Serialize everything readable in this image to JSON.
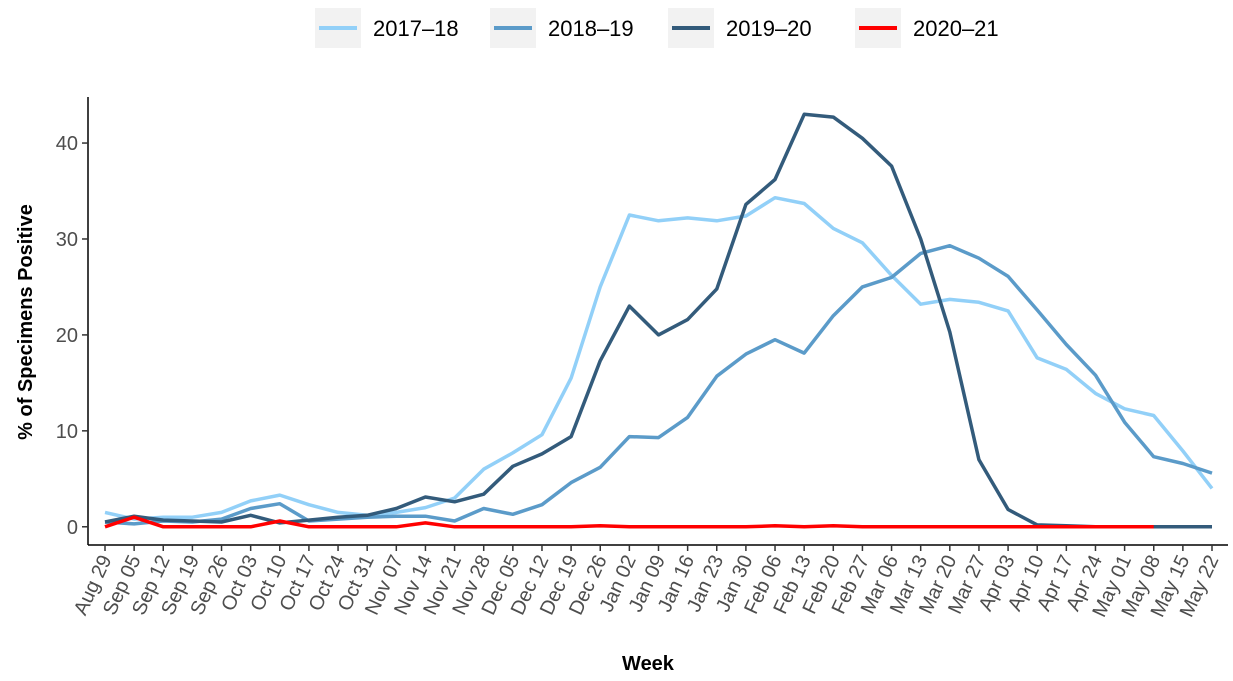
{
  "chart_data": {
    "type": "line",
    "x_label": "Week",
    "y_label": "% of Specimens Positive",
    "categories": [
      "Aug 29",
      "Sep 05",
      "Sep 12",
      "Sep 19",
      "Sep 26",
      "Oct 03",
      "Oct 10",
      "Oct 17",
      "Oct 24",
      "Oct 31",
      "Nov 07",
      "Nov 14",
      "Nov 21",
      "Nov 28",
      "Dec 05",
      "Dec 12",
      "Dec 19",
      "Dec 26",
      "Jan 02",
      "Jan 09",
      "Jan 16",
      "Jan 23",
      "Jan 30",
      "Feb 06",
      "Feb 13",
      "Feb 20",
      "Feb 27",
      "Mar 06",
      "Mar 13",
      "Mar 20",
      "Mar 27",
      "Apr 03",
      "Apr 10",
      "Apr 17",
      "Apr 24",
      "May 01",
      "May 08",
      "May 15",
      "May 22"
    ],
    "series": [
      {
        "name": "2017–18",
        "color": "#92d0f8",
        "values": [
          1.5,
          0.8,
          1.0,
          1.0,
          1.5,
          2.7,
          3.3,
          2.3,
          1.5,
          1.2,
          1.5,
          2.0,
          3.0,
          6.0,
          7.7,
          9.6,
          15.5,
          25.0,
          32.5,
          31.9,
          32.2,
          31.9,
          32.4,
          34.3,
          33.7,
          31.1,
          29.6,
          26.2,
          23.2,
          23.7,
          23.4,
          22.5,
          17.6,
          16.4,
          13.9,
          12.3,
          11.6,
          7.9,
          4.0
        ]
      },
      {
        "name": "2018–19",
        "color": "#5b9bc9",
        "values": [
          0.5,
          0.3,
          0.6,
          0.5,
          0.8,
          1.9,
          2.4,
          0.6,
          0.8,
          1.0,
          1.1,
          1.1,
          0.6,
          1.9,
          1.3,
          2.3,
          4.6,
          6.2,
          9.4,
          9.3,
          11.4,
          15.7,
          18.0,
          19.5,
          18.1,
          22.0,
          25.0,
          26.0,
          28.5,
          29.3,
          28.0,
          26.1,
          22.6,
          19.0,
          15.8,
          10.9,
          7.3,
          6.6,
          5.6
        ]
      },
      {
        "name": "2019–20",
        "color": "#335b7b",
        "values": [
          0.5,
          1.1,
          0.7,
          0.6,
          0.5,
          1.2,
          0.4,
          0.7,
          1.0,
          1.2,
          1.9,
          3.1,
          2.6,
          3.4,
          6.3,
          7.6,
          9.4,
          17.3,
          23.0,
          20.0,
          21.6,
          24.8,
          33.6,
          36.2,
          43.0,
          42.7,
          40.5,
          37.6,
          30.0,
          20.3,
          7.0,
          1.8,
          0.2,
          0.1,
          0,
          0,
          0,
          0,
          0
        ]
      },
      {
        "name": "2020–21",
        "color": "#ff0000",
        "values": [
          0,
          1.0,
          0,
          0,
          0,
          0,
          0.6,
          0,
          0,
          0,
          0,
          0.4,
          0,
          0,
          0,
          0,
          0,
          0.1,
          0,
          0,
          0,
          0,
          0,
          0.1,
          0,
          0.1,
          0,
          0,
          0,
          0,
          0,
          0,
          0,
          0,
          0,
          0,
          0,
          null,
          null
        ]
      }
    ],
    "ylim": [
      -1.9,
      44.8
    ],
    "yticks": [
      0,
      10,
      20,
      30,
      40
    ],
    "grid": false,
    "legend": "top"
  }
}
